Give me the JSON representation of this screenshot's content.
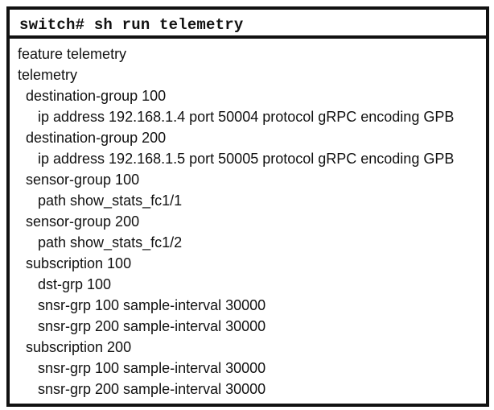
{
  "command": "switch# sh run telemetry",
  "config_lines": [
    {
      "indent": 0,
      "text": "feature telemetry"
    },
    {
      "indent": 0,
      "text": "telemetry"
    },
    {
      "indent": 1,
      "text": "destination-group 100"
    },
    {
      "indent": 2,
      "text": "ip address 192.168.1.4 port 50004 protocol gRPC encoding GPB"
    },
    {
      "indent": 1,
      "text": "destination-group 200"
    },
    {
      "indent": 2,
      "text": "ip address 192.168.1.5 port 50005 protocol gRPC encoding GPB"
    },
    {
      "indent": 1,
      "text": "sensor-group 100"
    },
    {
      "indent": 2,
      "text": "path show_stats_fc1/1"
    },
    {
      "indent": 1,
      "text": "sensor-group 200"
    },
    {
      "indent": 2,
      "text": "path show_stats_fc1/2"
    },
    {
      "indent": 1,
      "text": "subscription 100"
    },
    {
      "indent": 2,
      "text": "dst-grp 100"
    },
    {
      "indent": 2,
      "text": "snsr-grp 100 sample-interval 30000"
    },
    {
      "indent": 2,
      "text": "snsr-grp 200 sample-interval 30000"
    },
    {
      "indent": 1,
      "text": "subscription 200"
    },
    {
      "indent": 2,
      "text": "snsr-grp 100 sample-interval 30000"
    },
    {
      "indent": 2,
      "text": "snsr-grp 200 sample-interval 30000"
    }
  ]
}
